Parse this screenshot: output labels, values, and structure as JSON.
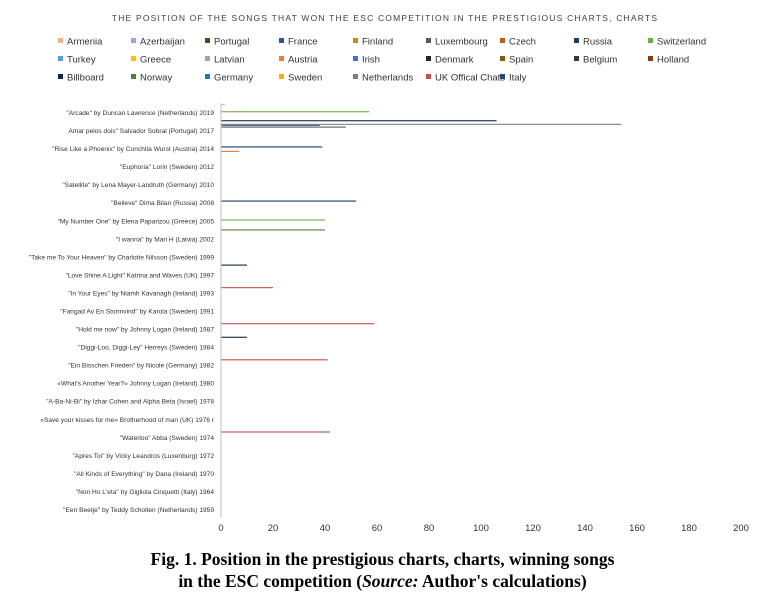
{
  "chart_data": {
    "type": "bar",
    "orientation": "horizontal",
    "title": "THE POSITION OF THE SONGS THAT WON THE ESC COMPETITION IN THE PRESTIGIOUS CHARTS, CHARTS",
    "xlabel": "",
    "ylabel": "",
    "xlim": [
      0,
      200
    ],
    "xticks": [
      0,
      20,
      40,
      60,
      80,
      100,
      120,
      140,
      160,
      180,
      200
    ],
    "grid": false,
    "legend_position": "top",
    "categories": [
      "\"Arcade\" by Duncan Lawrence (Netherlands) 2019",
      "Amar pelos dois\" Salvador Sobral (Portugal) 2017",
      "\"Rise Like a Phoenix\" by Conchita Wurst (Austria) 2014",
      "\"Euphoria\" Lorin (Sweden) 2012",
      "\"Satellite\" by Lena Mayer-Landruth (Germany) 2010",
      "\"Believe\" Dima Bilan (Russia) 2008",
      "\"My Number One\" by Elena Paparizou (Greece) 2005",
      "\"I wanna\" by Mari H (Latvia) 2002",
      "\"Take me To Your Heaven\" by Charlotte Nilsson (Sweden) 1999",
      "\"Love Shine A Light\" Katrina and Waves (UK) 1997",
      "\"In Your Eyes\" by Niamh Kavanagh (Ireland) 1993",
      "\"Fangad Av En Stormvind\" by Karola (Sweden) 1991",
      "\"Hold me now\" by Johnny Logan (Ireland) 1987",
      "\"Diggi-Loo, Diggi-Ley\" Herreys (Sweden) 1984",
      "\"Ein Bisschen Frieden\" by Nicole (Germany) 1982",
      "«What's Another Year?» Johnny Logan (Ireland) 1980",
      "\"A-Ba-Ni-Bi\" by Izhar Cohen and Alpha Beta (Israel) 1978",
      "«Save your kisses for me» Brotherhood of man (UK) 1976 r",
      "\"Waterloo\" Abba (Sweden) 1974",
      "\"Apres Toi\" by Vicky Leandros (Luxenburg) 1972",
      "\"All Kinds of Everything\" by Dana (Ireland) 1970",
      "\"Non Ho L'eta\" by Gigliola Cinquetti (Italy) 1964",
      "\"Een Beetje\" by Teddy Scholten (Netherlands) 1959"
    ],
    "series": [
      {
        "name": "Armenia",
        "color": "#f4b183",
        "values": [
          1.5,
          0,
          0,
          0,
          0,
          0,
          0,
          0,
          0,
          0,
          0,
          0,
          0,
          0,
          0,
          0,
          0,
          0,
          0,
          0,
          0,
          0,
          0
        ]
      },
      {
        "name": "Azerbaijan",
        "color": "#8faadc",
        "values": [
          0,
          0,
          0,
          0,
          0,
          0,
          0,
          0,
          0,
          0,
          0,
          0,
          0,
          0,
          0,
          0,
          0,
          0,
          0,
          0,
          0,
          0,
          0
        ]
      },
      {
        "name": "Portugal",
        "color": "#375623",
        "values": [
          0,
          0,
          0,
          0,
          0,
          0,
          0,
          0,
          0,
          0,
          0,
          0,
          0,
          0,
          0,
          0,
          0,
          0,
          0,
          0,
          0,
          0,
          0
        ]
      },
      {
        "name": "France",
        "color": "#2f5597",
        "values": [
          0,
          38,
          0,
          0,
          0,
          0,
          0,
          0,
          0,
          0,
          0,
          0,
          0,
          0,
          0,
          0,
          0,
          0,
          0,
          0,
          0,
          0,
          0
        ]
      },
      {
        "name": "Finland",
        "color": "#bf9000",
        "values": [
          0,
          0,
          0,
          0,
          0,
          0,
          0,
          0,
          0,
          0,
          0,
          0,
          0,
          0,
          0,
          0,
          0,
          0,
          0,
          0,
          0,
          0,
          0
        ]
      },
      {
        "name": "Luxembourg",
        "color": "#595959",
        "values": [
          0,
          48,
          0,
          0,
          0,
          0,
          0,
          0,
          0,
          0,
          0,
          0,
          0,
          0,
          0,
          0,
          0,
          0,
          0,
          0,
          0,
          0,
          0
        ]
      },
      {
        "name": "Czech",
        "color": "#c55a11",
        "values": [
          0,
          0,
          0,
          0,
          0,
          0,
          0,
          0,
          0,
          0,
          0,
          0,
          0,
          0,
          0,
          0,
          0,
          0,
          0,
          0,
          0,
          0,
          0
        ]
      },
      {
        "name": "Russia",
        "color": "#1f3864",
        "values": [
          0,
          0,
          39,
          0,
          0,
          52,
          0,
          0,
          0,
          0,
          0,
          0,
          0,
          0,
          0,
          0,
          0,
          0,
          0,
          0,
          0,
          0,
          0
        ]
      },
      {
        "name": "Switzerland",
        "color": "#70ad47",
        "values": [
          57,
          0,
          0,
          0,
          0,
          0,
          40,
          0,
          0,
          0,
          0,
          0,
          0,
          0,
          0,
          0,
          0,
          0,
          0,
          0,
          0,
          0,
          0
        ]
      },
      {
        "name": "Turkey",
        "color": "#5b9bd5",
        "values": [
          0,
          0,
          0,
          0,
          0,
          0,
          0,
          0,
          0,
          0,
          0,
          0,
          0,
          0,
          0,
          0,
          0,
          0,
          0,
          0,
          0,
          0,
          0
        ]
      },
      {
        "name": "Greece",
        "color": "#ffc000",
        "values": [
          0,
          0,
          0,
          0,
          0,
          0,
          0,
          0,
          0,
          0,
          0,
          0,
          0,
          0,
          0,
          0,
          0,
          0,
          0,
          0,
          0,
          0,
          0
        ]
      },
      {
        "name": "Latvian",
        "color": "#a5a5a5",
        "values": [
          0,
          0,
          0,
          0,
          0,
          0,
          0,
          0,
          0,
          0,
          0,
          0,
          0,
          0,
          0,
          0,
          0,
          0,
          0,
          0,
          0,
          0,
          0
        ]
      },
      {
        "name": "Austria",
        "color": "#ed7d31",
        "values": [
          0,
          0,
          7,
          0,
          0,
          0,
          0,
          0,
          0,
          0,
          0,
          0,
          0,
          0,
          0,
          0,
          0,
          0,
          0,
          0,
          0,
          0,
          0
        ]
      },
      {
        "name": "Irish",
        "color": "#4472c4",
        "values": [
          0,
          0,
          0,
          0,
          0,
          0,
          0,
          0,
          0,
          0,
          0,
          0,
          0,
          0,
          0,
          0,
          0,
          0,
          0,
          0,
          0,
          0,
          0
        ]
      },
      {
        "name": "Denmark",
        "color": "#262626",
        "values": [
          0,
          0,
          0,
          0,
          0,
          0,
          0,
          0,
          0,
          0,
          0,
          0,
          0,
          0,
          0,
          0,
          0,
          0,
          0,
          0,
          0,
          0,
          0
        ]
      },
      {
        "name": "Spain",
        "color": "#7f6000",
        "values": [
          0,
          0,
          0,
          0,
          0,
          0,
          0,
          0,
          0,
          0,
          0,
          0,
          0,
          0,
          0,
          0,
          0,
          0,
          0,
          0,
          0,
          0,
          0
        ]
      },
      {
        "name": "Belgium",
        "color": "#3a3a3a",
        "values": [
          0,
          0,
          0,
          0,
          0,
          0,
          0,
          0,
          0,
          0,
          0,
          0,
          0,
          0,
          0,
          0,
          0,
          0,
          0,
          0,
          0,
          0,
          0
        ]
      },
      {
        "name": "Holland",
        "color": "#843c0c",
        "values": [
          0,
          0,
          0,
          0,
          0,
          0,
          0,
          0,
          0,
          0,
          0,
          0,
          0,
          0,
          0,
          0,
          0,
          0,
          0,
          0,
          0,
          0,
          0
        ]
      },
      {
        "name": "Billboard",
        "color": "#10253f",
        "values": [
          106,
          0,
          0,
          0,
          0,
          0,
          0,
          0,
          10,
          0,
          0,
          0,
          10,
          0,
          0,
          0,
          0,
          0,
          0,
          0,
          0,
          0,
          0
        ]
      },
      {
        "name": "Norway",
        "color": "#548235",
        "values": [
          0,
          0,
          0,
          0,
          0,
          0,
          40,
          0,
          0,
          0,
          0,
          0,
          0,
          0,
          0,
          0,
          0,
          0,
          0,
          0,
          0,
          0,
          0
        ]
      },
      {
        "name": "Germany",
        "color": "#2e75b6",
        "values": [
          0,
          0,
          0,
          0,
          0,
          0,
          0,
          0,
          0,
          0,
          0,
          0,
          0,
          0,
          0,
          0,
          0,
          0,
          0,
          0,
          0,
          0,
          0
        ]
      },
      {
        "name": "Sweden",
        "color": "#f4b000",
        "values": [
          0,
          0,
          0,
          0,
          0,
          0,
          0,
          0,
          0,
          0,
          0,
          0,
          0,
          0,
          0,
          0,
          0,
          0,
          0,
          0,
          0,
          0,
          0
        ]
      },
      {
        "name": "Netherlands",
        "color": "#7f7f7f",
        "values": [
          154,
          0,
          0,
          0,
          0,
          0,
          0,
          0,
          0,
          0,
          0,
          0,
          0,
          0,
          0,
          0,
          0,
          0,
          0,
          0,
          0,
          0,
          0
        ]
      },
      {
        "name": "UK Offical Chats",
        "color": "#c0504d",
        "values": [
          0,
          0,
          0,
          0,
          0,
          0,
          0,
          0,
          0,
          20,
          0,
          59,
          0,
          41,
          0,
          0,
          0,
          42,
          0,
          0,
          0,
          0,
          0
        ]
      },
      {
        "name": "Italy",
        "color": "#1f497d",
        "values": [
          0,
          0,
          0,
          0,
          0,
          0,
          0,
          0,
          0,
          0,
          0,
          0,
          0,
          0,
          0,
          0,
          0,
          0,
          0,
          0,
          0,
          0,
          0
        ]
      }
    ]
  },
  "caption": {
    "line1": "Fig. 1. Position in the prestigious charts, charts, winning songs",
    "line2_prefix": "in the ESC competition (",
    "line2_source": "Source:",
    "line2_suffix": " Author's calculations)"
  }
}
